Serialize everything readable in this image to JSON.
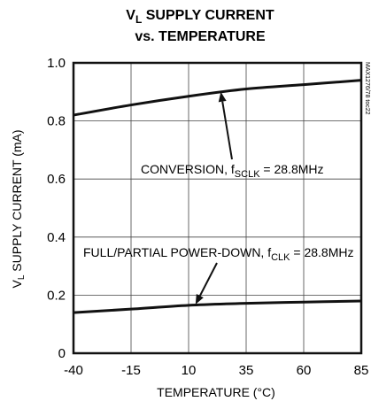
{
  "chart_data": {
    "type": "line",
    "title": {
      "line1": {
        "main": "V",
        "sub": "L",
        "rest": " SUPPLY CURRENT"
      },
      "line2": "vs. TEMPERATURE"
    },
    "xlabel": "TEMPERATURE (°C)",
    "ylabel": {
      "main": "V",
      "sub": "L",
      "rest": " SUPPLY CURRENT (mA)"
    },
    "xlim": [
      -40,
      85
    ],
    "ylim": [
      0,
      1.0
    ],
    "xticks": [
      -40,
      -15,
      10,
      35,
      60,
      85
    ],
    "yticks": [
      0,
      0.2,
      0.4,
      0.6,
      0.8,
      1.0
    ],
    "xtick_labels": [
      "-40",
      "-15",
      "10",
      "35",
      "60",
      "85"
    ],
    "ytick_labels": [
      "0",
      "0.2",
      "0.4",
      "0.6",
      "0.8",
      "1.0"
    ],
    "grid": true,
    "side_text": "MAX1276/78 toc22",
    "series": [
      {
        "x": [
          -40,
          -15,
          10,
          35,
          60,
          85
        ],
        "values": [
          0.82,
          0.855,
          0.885,
          0.91,
          0.925,
          0.94
        ]
      },
      {
        "x": [
          -40,
          -15,
          10,
          35,
          60,
          85
        ],
        "values": [
          0.14,
          0.152,
          0.165,
          0.172,
          0.176,
          0.18
        ]
      }
    ],
    "annotations": [
      {
        "text_main": "CONVERSION, f",
        "text_sub": "SCLK",
        "text_rest": " = 28.8MHz",
        "arrow_to": {
          "x": 24,
          "y": 0.9
        }
      },
      {
        "text_main": "FULL/PARTIAL POWER-DOWN, f",
        "text_sub": "CLK",
        "text_rest": " = 28.8MHz",
        "arrow_to": {
          "x": 13,
          "y": 0.168
        }
      }
    ]
  }
}
